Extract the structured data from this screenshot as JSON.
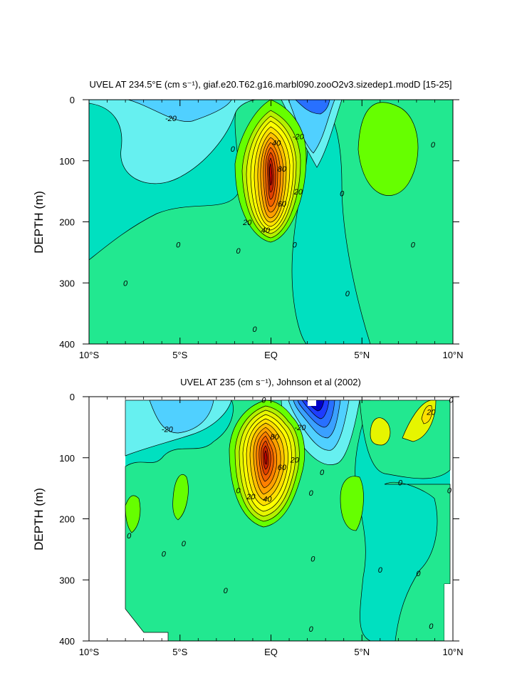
{
  "chart_data": [
    {
      "type": "contour",
      "title": "UVEL AT 234.5°E (cm s⁻¹), giaf.e20.T62.g16.marbl090.zooO2v3.sizedep1.modD [15-25]",
      "ylabel": "DEPTH (m)",
      "xlabel": "",
      "xlim": [
        -10,
        10
      ],
      "ylim": [
        400,
        0
      ],
      "x_ticks": [
        -10,
        -5,
        0,
        5,
        10
      ],
      "x_tick_labels": [
        "10°S",
        "5°S",
        "EQ",
        "5°N",
        "10°N"
      ],
      "y_ticks": [
        0,
        100,
        200,
        300,
        400
      ],
      "y_tick_labels": [
        "0",
        "100",
        "200",
        "300",
        "400"
      ],
      "contour_interval": 10,
      "core_max_cm_s": 95,
      "core_lat": 0,
      "core_depth_m": 130,
      "contour_labels": [
        {
          "text": "-20",
          "lat": -5.5,
          "depth": 35
        },
        {
          "text": "-20",
          "lat": 1.5,
          "depth": 65
        },
        {
          "text": "0",
          "lat": -2.1,
          "depth": 85
        },
        {
          "text": "40",
          "lat": 0.3,
          "depth": 75
        },
        {
          "text": "80",
          "lat": 0.6,
          "depth": 118
        },
        {
          "text": "20",
          "lat": 1.5,
          "depth": 155
        },
        {
          "text": "60",
          "lat": 0.6,
          "depth": 175
        },
        {
          "text": "20",
          "lat": -1.3,
          "depth": 205
        },
        {
          "text": "40",
          "lat": -0.3,
          "depth": 218
        },
        {
          "text": "0",
          "lat": 3.9,
          "depth": 158
        },
        {
          "text": "0",
          "lat": 8.9,
          "depth": 78
        },
        {
          "text": "0",
          "lat": -5.1,
          "depth": 242
        },
        {
          "text": "0",
          "lat": 1.3,
          "depth": 242
        },
        {
          "text": "0",
          "lat": 7.8,
          "depth": 242
        },
        {
          "text": "0",
          "lat": -1.8,
          "depth": 252
        },
        {
          "text": "0",
          "lat": -8.0,
          "depth": 305
        },
        {
          "text": "0",
          "lat": 4.2,
          "depth": 322
        },
        {
          "text": "0",
          "lat": -0.9,
          "depth": 380
        }
      ]
    },
    {
      "type": "contour",
      "title": "UVEL AT 235 (cm s⁻¹), Johnson et al (2002)",
      "ylabel": "DEPTH (m)",
      "xlabel": "",
      "xlim": [
        -10,
        10
      ],
      "ylim": [
        400,
        0
      ],
      "x_ticks": [
        -10,
        -5,
        0,
        5,
        10
      ],
      "x_tick_labels": [
        "10°S",
        "5°S",
        "EQ",
        "5°N",
        "10°N"
      ],
      "y_ticks": [
        0,
        100,
        200,
        300,
        400
      ],
      "y_tick_labels": [
        "0",
        "100",
        "200",
        "300",
        "400"
      ],
      "data_lat_range": [
        -8,
        9.9
      ],
      "contour_interval": 10,
      "core_max_cm_s": 100,
      "core_lat": -0.2,
      "core_depth_m": 90,
      "contour_labels": [
        {
          "text": "0",
          "lat": -0.4,
          "depth": 10
        },
        {
          "text": "-20",
          "lat": -5.7,
          "depth": 58
        },
        {
          "text": "-20",
          "lat": 1.6,
          "depth": 55
        },
        {
          "text": "80",
          "lat": 0.2,
          "depth": 70
        },
        {
          "text": "20",
          "lat": 1.3,
          "depth": 108
        },
        {
          "text": "60",
          "lat": 0.6,
          "depth": 120
        },
        {
          "text": "0",
          "lat": 2.8,
          "depth": 128
        },
        {
          "text": "0",
          "lat": 9.9,
          "depth": 10
        },
        {
          "text": "20",
          "lat": 8.8,
          "depth": 30
        },
        {
          "text": "0",
          "lat": 7.1,
          "depth": 145
        },
        {
          "text": "0",
          "lat": -1.8,
          "depth": 158
        },
        {
          "text": "0",
          "lat": 2.2,
          "depth": 162
        },
        {
          "text": "0",
          "lat": 9.8,
          "depth": 158
        },
        {
          "text": "20",
          "lat": -1.1,
          "depth": 168
        },
        {
          "text": "40",
          "lat": -0.2,
          "depth": 172
        },
        {
          "text": "0",
          "lat": -7.8,
          "depth": 232
        },
        {
          "text": "0",
          "lat": -4.8,
          "depth": 245
        },
        {
          "text": "0",
          "lat": -5.9,
          "depth": 262
        },
        {
          "text": "0",
          "lat": 2.3,
          "depth": 270
        },
        {
          "text": "0",
          "lat": 6.0,
          "depth": 288
        },
        {
          "text": "0",
          "lat": 8.1,
          "depth": 294
        },
        {
          "text": "0",
          "lat": -2.5,
          "depth": 322
        },
        {
          "text": "0",
          "lat": 2.2,
          "depth": 385
        },
        {
          "text": "0",
          "lat": 8.8,
          "depth": 380
        }
      ]
    }
  ],
  "colormap": [
    "#0000c8",
    "#1e3cff",
    "#2870ff",
    "#3aa0ff",
    "#50d0ff",
    "#66f0f0",
    "#00e0c0",
    "#22e890",
    "#40e860",
    "#66ff00",
    "#b4f000",
    "#e6f500",
    "#ffff00",
    "#ffe000",
    "#ffc000",
    "#ffa000",
    "#ff8000",
    "#f06000",
    "#e04000",
    "#d02000",
    "#c00000"
  ],
  "colormap_levels": [
    -60,
    -50,
    -40,
    -30,
    -20,
    -10,
    -5,
    0,
    5,
    10,
    20,
    30,
    40,
    50,
    60,
    70,
    80,
    90,
    100,
    110,
    120
  ]
}
